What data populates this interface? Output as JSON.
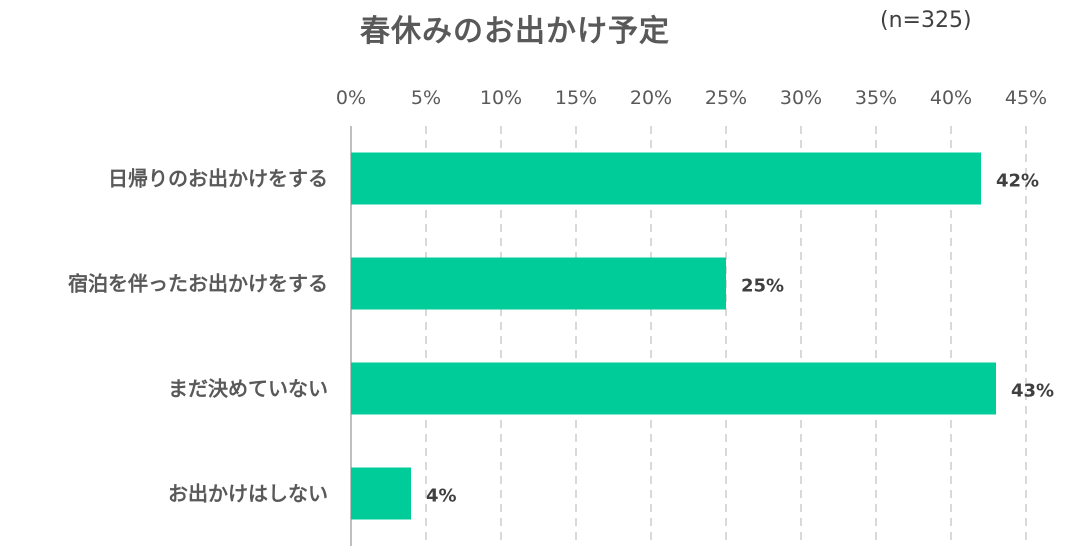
{
  "chart_data": {
    "type": "bar",
    "orientation": "horizontal",
    "title": "春休みのお出かけ予定",
    "note": "(n=325)",
    "categories": [
      "日帰りのお出かけをする",
      "宿泊を伴ったお出かけをする",
      "まだ決めていない",
      "お出かけはしない"
    ],
    "values": [
      42,
      25,
      43,
      4
    ],
    "data_labels": [
      "42%",
      "25%",
      "43%",
      "4%"
    ],
    "xlim": [
      0,
      45
    ],
    "x_ticks": [
      0,
      5,
      10,
      15,
      20,
      25,
      30,
      35,
      40,
      45
    ],
    "x_tick_labels": [
      "0%",
      "5%",
      "10%",
      "15%",
      "20%",
      "25%",
      "30%",
      "35%",
      "40%",
      "45%"
    ],
    "axis_position": "top",
    "grid": "vertical-dashed",
    "bar_color": "#00CC99",
    "gridline_color": "#D9D9D9"
  }
}
